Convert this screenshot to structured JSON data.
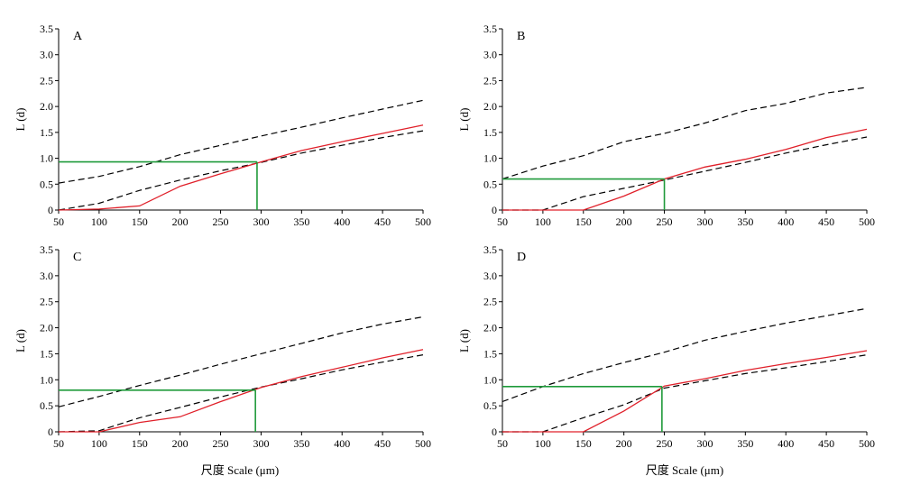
{
  "x_caption": "尺度 Scale (μm)",
  "chart_data": [
    {
      "type": "line",
      "panel": "A",
      "xlabel": "",
      "ylabel": "L (d)",
      "xlim": [
        50,
        500
      ],
      "ylim": [
        0,
        3.5
      ],
      "xticks": [
        50,
        100,
        150,
        200,
        250,
        300,
        350,
        400,
        450,
        500
      ],
      "yticks": [
        0,
        0.5,
        1.0,
        1.5,
        2.0,
        2.5,
        3.0,
        3.5
      ],
      "series": [
        {
          "style": "dashed",
          "color": "#000000",
          "x": [
            50,
            100,
            150,
            200,
            250,
            300,
            350,
            400,
            450,
            500
          ],
          "y": [
            0.52,
            0.65,
            0.84,
            1.07,
            1.25,
            1.43,
            1.6,
            1.78,
            1.95,
            2.12
          ]
        },
        {
          "style": "dashed",
          "color": "#000000",
          "x": [
            50,
            100,
            150,
            200,
            250,
            300,
            350,
            400,
            450,
            500
          ],
          "y": [
            0.0,
            0.13,
            0.38,
            0.58,
            0.76,
            0.92,
            1.1,
            1.25,
            1.4,
            1.53
          ]
        },
        {
          "style": "solid",
          "color": "#e0202a",
          "x": [
            50,
            100,
            150,
            200,
            250,
            300,
            350,
            400,
            450,
            500
          ],
          "y": [
            0.0,
            0.02,
            0.08,
            0.46,
            0.7,
            0.93,
            1.15,
            1.32,
            1.48,
            1.64
          ]
        }
      ],
      "marker": {
        "color": "#1f9a3a",
        "x": 295,
        "y": 0.93
      }
    },
    {
      "type": "line",
      "panel": "B",
      "xlabel": "",
      "ylabel": "L (d)",
      "xlim": [
        50,
        500
      ],
      "ylim": [
        0,
        3.5
      ],
      "xticks": [
        50,
        100,
        150,
        200,
        250,
        300,
        350,
        400,
        450,
        500
      ],
      "yticks": [
        0,
        0.5,
        1.0,
        1.5,
        2.0,
        2.5,
        3.0,
        3.5
      ],
      "series": [
        {
          "style": "dashed",
          "color": "#000000",
          "x": [
            50,
            100,
            150,
            200,
            250,
            300,
            350,
            400,
            450,
            500
          ],
          "y": [
            0.6,
            0.85,
            1.05,
            1.32,
            1.48,
            1.68,
            1.92,
            2.06,
            2.26,
            2.37
          ]
        },
        {
          "style": "dashed",
          "color": "#000000",
          "x": [
            50,
            100,
            150,
            200,
            250,
            300,
            350,
            400,
            450,
            500
          ],
          "y": [
            0.0,
            0.0,
            0.26,
            0.42,
            0.58,
            0.75,
            0.92,
            1.1,
            1.26,
            1.41
          ]
        },
        {
          "style": "solid",
          "color": "#e0202a",
          "x": [
            50,
            100,
            150,
            200,
            250,
            300,
            350,
            400,
            450,
            500
          ],
          "y": [
            0.0,
            0.0,
            0.0,
            0.27,
            0.6,
            0.83,
            0.98,
            1.17,
            1.4,
            1.56
          ]
        }
      ],
      "marker": {
        "color": "#1f9a3a",
        "x": 250,
        "y": 0.6
      }
    },
    {
      "type": "line",
      "panel": "C",
      "xlabel": "",
      "ylabel": "L (d)",
      "xlim": [
        50,
        500
      ],
      "ylim": [
        0,
        3.5
      ],
      "xticks": [
        50,
        100,
        150,
        200,
        250,
        300,
        350,
        400,
        450,
        500
      ],
      "yticks": [
        0,
        0.5,
        1.0,
        1.5,
        2.0,
        2.5,
        3.0,
        3.5
      ],
      "series": [
        {
          "style": "dashed",
          "color": "#000000",
          "x": [
            50,
            100,
            150,
            200,
            250,
            300,
            350,
            400,
            450,
            500
          ],
          "y": [
            0.48,
            0.68,
            0.89,
            1.09,
            1.3,
            1.5,
            1.7,
            1.9,
            2.07,
            2.21
          ]
        },
        {
          "style": "dashed",
          "color": "#000000",
          "x": [
            50,
            100,
            150,
            200,
            250,
            300,
            350,
            400,
            450,
            500
          ],
          "y": [
            0.0,
            0.02,
            0.27,
            0.47,
            0.67,
            0.86,
            1.02,
            1.19,
            1.34,
            1.48
          ]
        },
        {
          "style": "solid",
          "color": "#e0202a",
          "x": [
            50,
            100,
            150,
            200,
            250,
            300,
            350,
            400,
            450,
            500
          ],
          "y": [
            0.0,
            0.0,
            0.18,
            0.29,
            0.58,
            0.85,
            1.06,
            1.24,
            1.42,
            1.58
          ]
        }
      ],
      "marker": {
        "color": "#1f9a3a",
        "x": 293,
        "y": 0.8
      }
    },
    {
      "type": "line",
      "panel": "D",
      "xlabel": "",
      "ylabel": "L (d)",
      "xlim": [
        50,
        500
      ],
      "ylim": [
        0,
        3.5
      ],
      "xticks": [
        50,
        100,
        150,
        200,
        250,
        300,
        350,
        400,
        450,
        500
      ],
      "yticks": [
        0,
        0.5,
        1.0,
        1.5,
        2.0,
        2.5,
        3.0,
        3.5
      ],
      "series": [
        {
          "style": "dashed",
          "color": "#000000",
          "x": [
            50,
            100,
            150,
            200,
            250,
            300,
            350,
            400,
            450,
            500
          ],
          "y": [
            0.58,
            0.87,
            1.12,
            1.33,
            1.53,
            1.76,
            1.93,
            2.09,
            2.23,
            2.37
          ]
        },
        {
          "style": "dashed",
          "color": "#000000",
          "x": [
            50,
            100,
            150,
            200,
            250,
            300,
            350,
            400,
            450,
            500
          ],
          "y": [
            0.0,
            0.0,
            0.27,
            0.52,
            0.84,
            0.98,
            1.12,
            1.23,
            1.35,
            1.48
          ]
        },
        {
          "style": "solid",
          "color": "#e0202a",
          "x": [
            50,
            100,
            150,
            200,
            250,
            300,
            350,
            400,
            450,
            500
          ],
          "y": [
            0.0,
            0.0,
            0.0,
            0.4,
            0.88,
            1.02,
            1.18,
            1.31,
            1.43,
            1.56
          ]
        }
      ],
      "marker": {
        "color": "#1f9a3a",
        "x": 247,
        "y": 0.87
      }
    }
  ]
}
